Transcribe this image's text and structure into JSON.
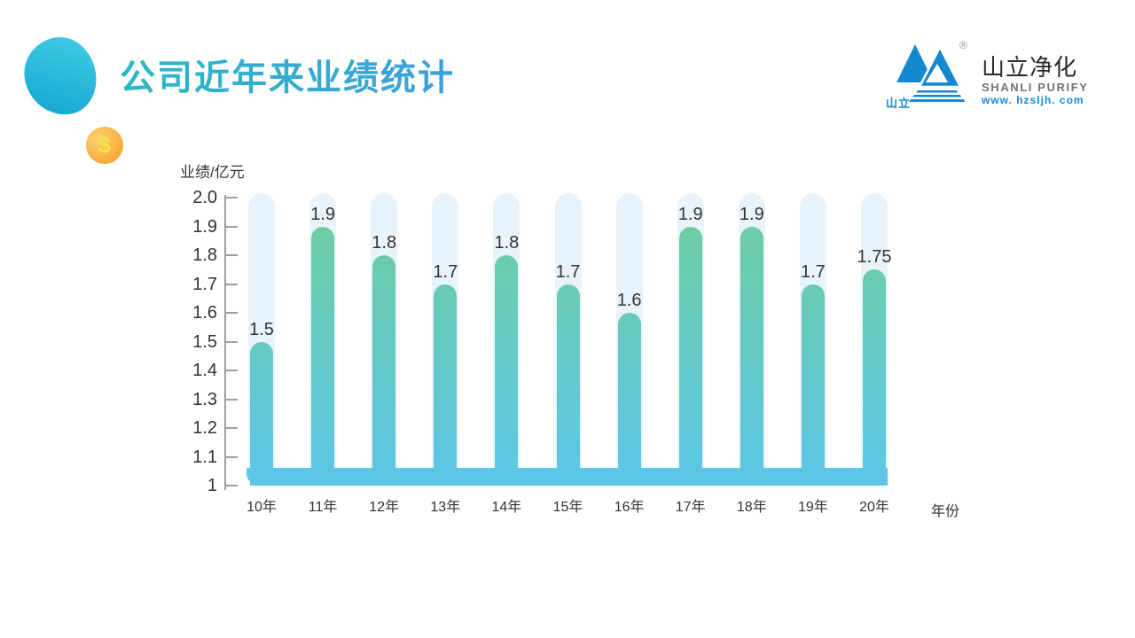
{
  "slide": {
    "title": "公司近年来业绩统计"
  },
  "decorations": {
    "coin_symbol": "$"
  },
  "logo": {
    "mark_text": "山立",
    "registered": "®",
    "name_cn": "山立净化",
    "name_en": "SHANLI PURIFY",
    "website": "www. hzsljh. com"
  },
  "theme": {
    "title_gradient_start": "#2cb9c6",
    "title_gradient_end": "#3e9fdb",
    "blob_gradient_start": "#3cc8e2",
    "blob_gradient_end": "#17a8d3",
    "coin_color": "#f7a637",
    "coin_symbol_color": "#f5e44c",
    "brand_blue": "#1489cf",
    "bar_gradient_top": "#6fce9c",
    "bar_gradient_bottom": "#5cc6e8",
    "track_color": "#e9f3fc",
    "band_color": "#5cc7e8",
    "axis_color": "#9aa0a4",
    "text_color": "#333333"
  },
  "chart_data": {
    "type": "bar",
    "title": "公司近年来业绩统计",
    "ylabel": "业绩/亿元",
    "xlabel": "年份",
    "categories": [
      "10年",
      "11年",
      "12年",
      "13年",
      "14年",
      "15年",
      "16年",
      "17年",
      "18年",
      "19年",
      "20年"
    ],
    "values": [
      1.5,
      1.9,
      1.8,
      1.7,
      1.8,
      1.7,
      1.6,
      1.9,
      1.9,
      1.7,
      1.75
    ],
    "value_labels": [
      "1.5",
      "1.9",
      "1.8",
      "1.7",
      "1.8",
      "1.7",
      "1.6",
      "1.9",
      "1.9",
      "1.7",
      "1.75"
    ],
    "yticks": [
      "2.0",
      "1.9",
      "1.8",
      "1.7",
      "1.6",
      "1.5",
      "1.4",
      "1.3",
      "1.2",
      "1.1",
      "1"
    ],
    "ylim": [
      1,
      2
    ],
    "grid": false,
    "legend": "none"
  }
}
